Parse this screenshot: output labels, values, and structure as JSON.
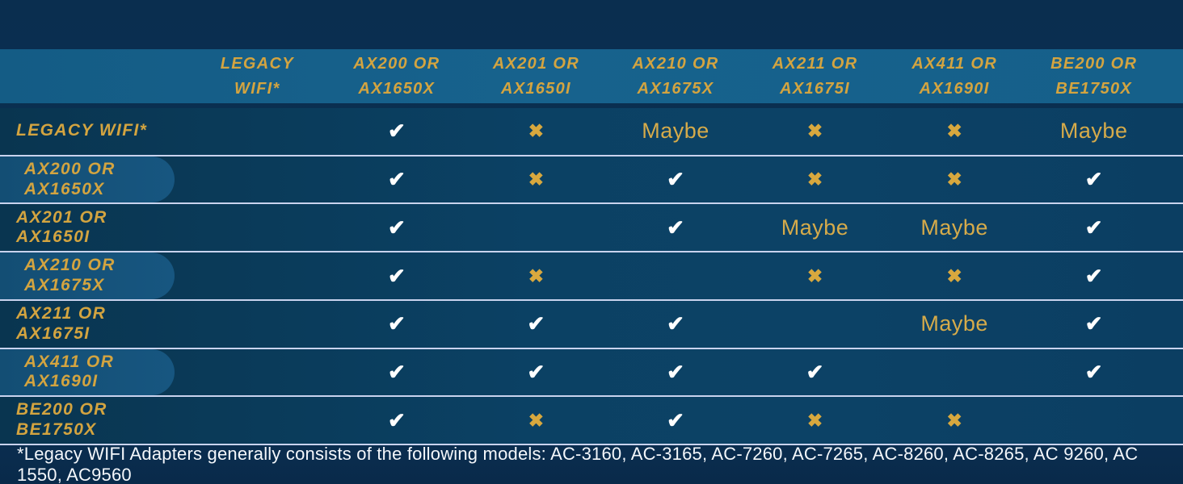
{
  "colors": {
    "background": "#0a2f51",
    "header_band": "#17618c",
    "row_background": "#0b4164",
    "pill_background": "#175680",
    "gold_text": "#d3a440",
    "check_mark": "#ffffff",
    "x_mark": "#d8a83e",
    "maybe_text": "#d6ab4a",
    "separator_line": "#c9d3ee",
    "footnote_text": "#f4f7fb"
  },
  "symbols": {
    "check": "✔",
    "x": "✖"
  },
  "maybe_label": "Maybe",
  "header": {
    "columns": [
      [
        "LEGACY",
        "WIFI*"
      ],
      [
        "AX200 OR",
        "AX1650X"
      ],
      [
        "AX201 OR",
        "AX1650I"
      ],
      [
        "AX210 OR",
        "AX1675X"
      ],
      [
        "AX211 OR",
        "AX1675I"
      ],
      [
        "AX411 OR",
        "AX1690I"
      ],
      [
        "BE200 OR",
        "BE1750X"
      ]
    ]
  },
  "rows": [
    {
      "label": [
        "LEGACY WIFI*"
      ],
      "pill": false,
      "cells": [
        "",
        "check",
        "x",
        "maybe",
        "x",
        "x",
        "maybe"
      ]
    },
    {
      "label": [
        "AX200 OR",
        "AX1650X"
      ],
      "pill": true,
      "cells": [
        "",
        "check",
        "x",
        "check",
        "x",
        "x",
        "check"
      ]
    },
    {
      "label": [
        "AX201 OR",
        "AX1650I"
      ],
      "pill": false,
      "cells": [
        "",
        "check",
        "",
        "check",
        "maybe",
        "maybe",
        "check"
      ]
    },
    {
      "label": [
        "AX210 OR",
        "AX1675X"
      ],
      "pill": true,
      "cells": [
        "",
        "check",
        "x",
        "",
        "x",
        "x",
        "check"
      ]
    },
    {
      "label": [
        "AX211 OR",
        "AX1675I"
      ],
      "pill": false,
      "cells": [
        "",
        "check",
        "check",
        "check",
        "",
        "maybe",
        "check"
      ]
    },
    {
      "label": [
        "AX411 OR",
        "AX1690I"
      ],
      "pill": true,
      "cells": [
        "",
        "check",
        "check",
        "check",
        "check",
        "",
        "check"
      ]
    },
    {
      "label": [
        "BE200 OR",
        "BE1750X"
      ],
      "pill": false,
      "cells": [
        "",
        "check",
        "x",
        "check",
        "x",
        "x",
        ""
      ]
    }
  ],
  "footnote": "*Legacy WIFI Adapters generally consists of the following models: AC-3160, AC-3165, AC-7260, AC-7265, AC-8260, AC-8265, AC 9260, AC 1550, AC9560",
  "chart_data": {
    "type": "table",
    "columns": [
      "",
      "LEGACY WIFI*",
      "AX200 OR AX1650X",
      "AX201 OR AX1650I",
      "AX210 OR AX1675X",
      "AX211 OR AX1675I",
      "AX411 OR AX1690I",
      "BE200 OR BE1750X"
    ],
    "rows": [
      [
        "LEGACY WIFI*",
        "",
        "yes",
        "no",
        "maybe",
        "no",
        "no",
        "maybe"
      ],
      [
        "AX200 OR AX1650X",
        "",
        "yes",
        "no",
        "yes",
        "no",
        "no",
        "yes"
      ],
      [
        "AX201 OR AX1650I",
        "",
        "yes",
        "",
        "yes",
        "maybe",
        "maybe",
        "yes"
      ],
      [
        "AX210 OR AX1675X",
        "",
        "yes",
        "no",
        "",
        "no",
        "no",
        "yes"
      ],
      [
        "AX211 OR AX1675I",
        "",
        "yes",
        "yes",
        "yes",
        "",
        "maybe",
        "yes"
      ],
      [
        "AX411 OR AX1690I",
        "",
        "yes",
        "yes",
        "yes",
        "yes",
        "",
        "yes"
      ],
      [
        "BE200 OR BE1750X",
        "",
        "yes",
        "no",
        "yes",
        "no",
        "no",
        ""
      ]
    ],
    "legend": {
      "yes": "white check mark",
      "no": "gold X mark",
      "maybe": "gold 'Maybe' text",
      "": "blank cell"
    },
    "annotations": "*Legacy WIFI Adapters generally consists of the following models: AC-3160, AC-3165, AC-7260, AC-7265, AC-8260, AC-8265, AC 9260, AC 1550, AC9560"
  }
}
